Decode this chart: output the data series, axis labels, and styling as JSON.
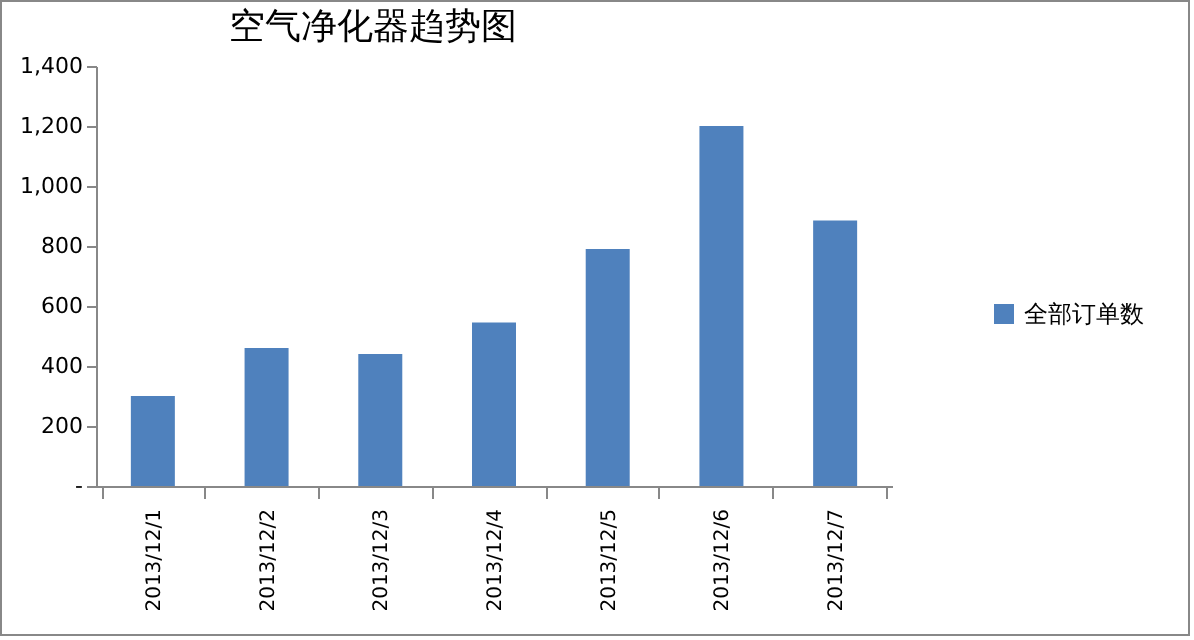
{
  "chart_data": {
    "type": "bar",
    "title": "空气净化器趋势图",
    "categories": [
      "2013/12/1",
      "2013/12/2",
      "2013/12/3",
      "2013/12/4",
      "2013/12/5",
      "2013/12/6",
      "2013/12/7"
    ],
    "series": [
      {
        "name": "全部订单数",
        "color": "#4f81bd",
        "values": [
          300,
          460,
          440,
          545,
          790,
          1200,
          885
        ]
      }
    ],
    "ylim": [
      0,
      1400
    ],
    "yticks": [
      {
        "value": 0,
        "label": "-"
      },
      200,
      400,
      600,
      800,
      {
        "value": 1000,
        "label": "1,000"
      },
      {
        "value": 1200,
        "label": "1,200"
      },
      {
        "value": 1400,
        "label": "1,400"
      }
    ],
    "grid": false,
    "legend": "right"
  }
}
